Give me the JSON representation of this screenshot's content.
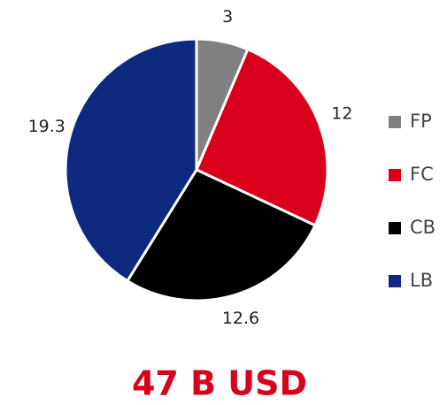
{
  "chart_data": {
    "type": "pie",
    "title": "47 B USD",
    "categories": [
      "FP",
      "FC",
      "CB",
      "LB"
    ],
    "values": [
      3,
      12,
      12.6,
      19.3
    ],
    "colors": [
      "#808080",
      "#d9001b",
      "#000000",
      "#0d2a7f"
    ],
    "legend": "right"
  }
}
